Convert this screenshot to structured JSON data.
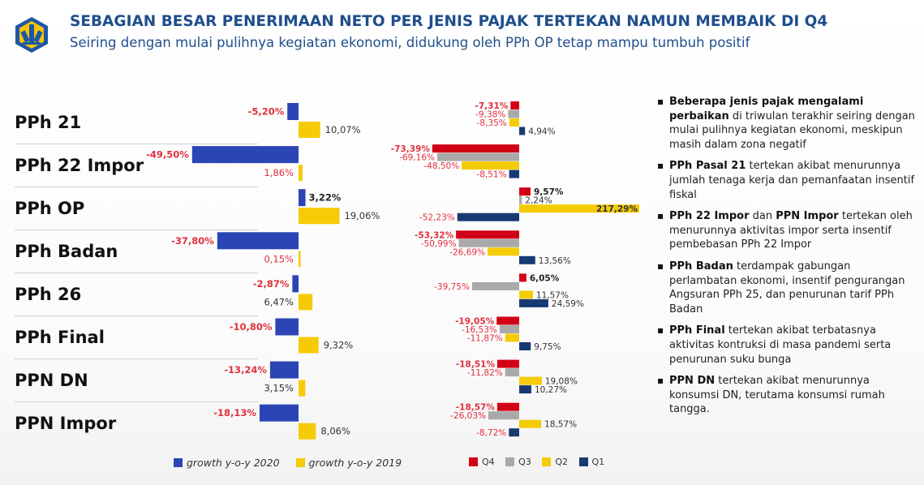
{
  "header": {
    "title": "SEBAGIAN BESAR PENERIMAAN NETO PER JENIS PAJAK TERTEKAN NAMUN MEMBAIK DI Q4",
    "subtitle": "Seiring dengan mulai pulihnya kegiatan ekonomi, didukung oleh PPh OP tetap mampu tumbuh positif",
    "logo": "kemenkeu-logo"
  },
  "colors": {
    "growth_2020": "#2b45b5",
    "growth_2019": "#f5cb06",
    "q4": "#d10016",
    "q3": "#a9a9a9",
    "q2": "#f5cb06",
    "q1": "#173a72",
    "negative_label": "#e0303c",
    "positive_label": "#333333",
    "title": "#1f4e8c"
  },
  "categories": [
    "PPh 21",
    "PPh 22 Impor",
    "PPh OP",
    "PPh Badan",
    "PPh 26",
    "PPh Final",
    "PPN DN",
    "PPN Impor"
  ],
  "chart_data": [
    {
      "type": "bar",
      "orientation": "horizontal",
      "categories": [
        "PPh 21",
        "PPh 22 Impor",
        "PPh OP",
        "PPh Badan",
        "PPh 26",
        "PPh Final",
        "PPN DN",
        "PPN Impor"
      ],
      "series": [
        {
          "name": "growth y-o-y 2020",
          "values": [
            -5.2,
            -49.5,
            3.22,
            -37.8,
            -2.87,
            -10.8,
            -13.24,
            -18.13
          ],
          "labels": [
            "-5,20%",
            "-49,50%",
            "3,22%",
            "-37,80%",
            "-2,87%",
            "-10,80%",
            "-13,24%",
            "-18,13%"
          ]
        },
        {
          "name": "growth y-o-y 2019",
          "values": [
            10.07,
            1.86,
            19.06,
            0.15,
            6.47,
            9.32,
            3.15,
            8.06
          ],
          "labels": [
            "10,07%",
            "1,86%",
            "19,06%",
            "0,15%",
            "6,47%",
            "9,32%",
            "3,15%",
            "8,06%"
          ]
        }
      ],
      "legend": "bottom"
    },
    {
      "type": "bar",
      "orientation": "horizontal",
      "categories": [
        "PPh 21",
        "PPh 22 Impor",
        "PPh OP",
        "PPh Badan",
        "PPh 26",
        "PPh Final",
        "PPN DN",
        "PPN Impor"
      ],
      "series": [
        {
          "name": "Q4",
          "values": [
            -7.31,
            -73.39,
            9.57,
            -53.32,
            6.05,
            -19.05,
            -18.51,
            -18.57
          ],
          "labels": [
            "-7,31%",
            "-73,39%",
            "9,57%",
            "-53,32%",
            "6,05%",
            "-19,05%",
            "-18,51%",
            "-18,57%"
          ]
        },
        {
          "name": "Q3",
          "values": [
            -9.38,
            -69.16,
            2.24,
            -50.99,
            -39.75,
            -16.53,
            -11.82,
            -26.03
          ],
          "labels": [
            "-9,38%",
            "-69,16%",
            "2,24%",
            "-50,99%",
            "-39,75%",
            "-16,53%",
            "-11,82%",
            "-26,03%"
          ]
        },
        {
          "name": "Q2",
          "values": [
            -8.35,
            -48.5,
            217.29,
            -26.69,
            11.57,
            -11.87,
            19.08,
            18.57
          ],
          "labels": [
            "-8,35%",
            "-48,50%",
            "217,29%",
            "-26,69%",
            "11,57%",
            "-11,87%",
            "19,08%",
            "18,57%"
          ]
        },
        {
          "name": "Q1",
          "values": [
            4.94,
            -8.51,
            -52.23,
            13.56,
            24.59,
            9.75,
            10.27,
            -8.72
          ],
          "labels": [
            "4,94%",
            "-8,51%",
            "-52,23%",
            "13,56%",
            "24,59%",
            "9,75%",
            "10,27%",
            "-8,72%"
          ]
        }
      ],
      "legend": "bottom"
    }
  ],
  "legend1": [
    "growth y-o-y 2020",
    "growth y-o-y 2019"
  ],
  "legend2": [
    "Q4",
    "Q3",
    "Q2",
    "Q1"
  ],
  "notes": [
    {
      "bold": "Beberapa jenis pajak mengalami perbaikan",
      "text": " di triwulan terakhir seiring dengan mulai pulihnya kegiatan ekonomi, meskipun masih dalam zona negatif"
    },
    {
      "bold": "PPh Pasal 21",
      "text": " tertekan akibat menurunnya jumlah tenaga kerja dan pemanfaatan insentif fiskal"
    },
    {
      "bold": "PPh 22 Impor",
      "mid": " dan ",
      "bold2": "PPN Impor",
      "text": " tertekan oleh menurunnya aktivitas impor serta insentif pembebasan PPh 22 Impor"
    },
    {
      "bold": "PPh Badan",
      "text": " terdampak gabungan perlambatan ekonomi, insentif pengurangan Angsuran PPh 25, dan penurunan tarif PPh Badan"
    },
    {
      "bold": "PPh Final",
      "text": " tertekan akibat terbatasnya aktivitas kontruksi di masa pandemi serta penurunan suku bunga"
    },
    {
      "bold": "PPN DN",
      "text": " tertekan akibat menurunnya konsumsi DN, terutama konsumsi rumah tangga."
    }
  ]
}
